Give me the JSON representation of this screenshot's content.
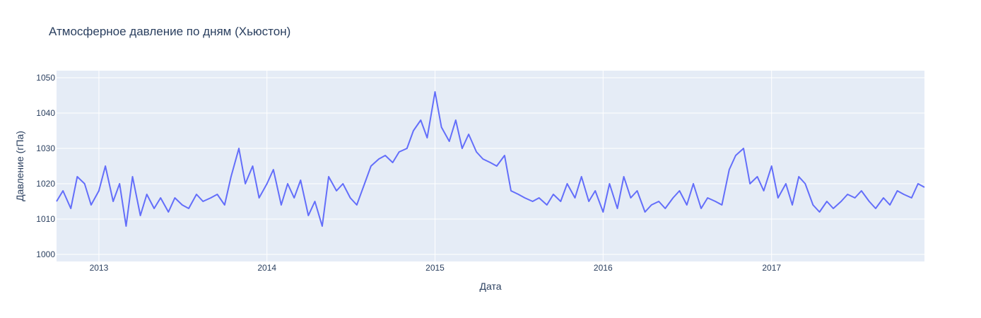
{
  "chart_data": {
    "type": "line",
    "title": "Атмосферное давление по дням (Хьюстон)",
    "xlabel": "Дата",
    "ylabel": "Давление (гПа)",
    "x_range": [
      "2012-10-01",
      "2017-11-29"
    ],
    "ylim": [
      998,
      1052
    ],
    "x_ticks": [
      {
        "date": "2013-01-01",
        "label": "2013"
      },
      {
        "date": "2014-01-01",
        "label": "2014"
      },
      {
        "date": "2015-01-01",
        "label": "2015"
      },
      {
        "date": "2016-01-01",
        "label": "2016"
      },
      {
        "date": "2017-01-01",
        "label": "2017"
      }
    ],
    "y_ticks": [
      1000,
      1010,
      1020,
      1030,
      1040,
      1050
    ],
    "grid": true,
    "colors": {
      "line": "#636efa",
      "plot_bg": "#e5ecf6",
      "grid": "#ffffff",
      "text": "#2a3f5f"
    },
    "series": [
      {
        "x": [
          "2012-10-01",
          "2012-10-15",
          "2012-11-01",
          "2012-11-15",
          "2012-12-01",
          "2012-12-15",
          "2013-01-01",
          "2013-01-15",
          "2013-02-01",
          "2013-02-15",
          "2013-03-01",
          "2013-03-15",
          "2013-04-01",
          "2013-04-15",
          "2013-05-01",
          "2013-05-15",
          "2013-06-01",
          "2013-06-15",
          "2013-07-01",
          "2013-07-15",
          "2013-08-01",
          "2013-08-15",
          "2013-09-01",
          "2013-09-15",
          "2013-10-01",
          "2013-10-15",
          "2013-11-01",
          "2013-11-15",
          "2013-12-01",
          "2013-12-15",
          "2014-01-01",
          "2014-01-15",
          "2014-02-01",
          "2014-02-15",
          "2014-03-01",
          "2014-03-15",
          "2014-04-01",
          "2014-04-15",
          "2014-05-01",
          "2014-05-15",
          "2014-06-01",
          "2014-06-15",
          "2014-07-01",
          "2014-07-15",
          "2014-08-01",
          "2014-08-15",
          "2014-09-01",
          "2014-09-15",
          "2014-10-01",
          "2014-10-15",
          "2014-11-01",
          "2014-11-15",
          "2014-12-01",
          "2014-12-15",
          "2015-01-01",
          "2015-01-15",
          "2015-02-01",
          "2015-02-15",
          "2015-03-01",
          "2015-03-15",
          "2015-04-01",
          "2015-04-15",
          "2015-05-01",
          "2015-05-15",
          "2015-06-01",
          "2015-06-15",
          "2015-07-01",
          "2015-07-15",
          "2015-08-01",
          "2015-08-15",
          "2015-09-01",
          "2015-09-15",
          "2015-10-01",
          "2015-10-15",
          "2015-11-01",
          "2015-11-15",
          "2015-12-01",
          "2015-12-15",
          "2016-01-01",
          "2016-01-15",
          "2016-02-01",
          "2016-02-15",
          "2016-03-01",
          "2016-03-15",
          "2016-04-01",
          "2016-04-15",
          "2016-05-01",
          "2016-05-15",
          "2016-06-01",
          "2016-06-15",
          "2016-07-01",
          "2016-07-15",
          "2016-08-01",
          "2016-08-15",
          "2016-09-01",
          "2016-09-15",
          "2016-10-01",
          "2016-10-15",
          "2016-11-01",
          "2016-11-15",
          "2016-12-01",
          "2016-12-15",
          "2017-01-01",
          "2017-01-15",
          "2017-02-01",
          "2017-02-15",
          "2017-03-01",
          "2017-03-15",
          "2017-04-01",
          "2017-04-15",
          "2017-05-01",
          "2017-05-15",
          "2017-06-01",
          "2017-06-15",
          "2017-07-01",
          "2017-07-15",
          "2017-08-01",
          "2017-08-15",
          "2017-09-01",
          "2017-09-15",
          "2017-10-01",
          "2017-10-15",
          "2017-11-01",
          "2017-11-15",
          "2017-11-29"
        ],
        "y": [
          1015,
          1018,
          1013,
          1022,
          1020,
          1014,
          1018,
          1025,
          1015,
          1020,
          1008,
          1022,
          1011,
          1017,
          1013,
          1016,
          1012,
          1016,
          1014,
          1013,
          1017,
          1015,
          1016,
          1017,
          1014,
          1022,
          1030,
          1020,
          1025,
          1016,
          1020,
          1024,
          1014,
          1020,
          1016,
          1021,
          1011,
          1015,
          1008,
          1022,
          1018,
          1020,
          1016,
          1014,
          1020,
          1025,
          1027,
          1028,
          1026,
          1029,
          1030,
          1035,
          1038,
          1033,
          1046,
          1036,
          1032,
          1038,
          1030,
          1034,
          1029,
          1027,
          1026,
          1025,
          1028,
          1018,
          1017,
          1016,
          1015,
          1016,
          1014,
          1017,
          1015,
          1020,
          1016,
          1022,
          1015,
          1018,
          1012,
          1020,
          1013,
          1022,
          1016,
          1018,
          1012,
          1014,
          1015,
          1013,
          1016,
          1018,
          1014,
          1020,
          1013,
          1016,
          1015,
          1014,
          1024,
          1028,
          1030,
          1020,
          1022,
          1018,
          1025,
          1016,
          1020,
          1014,
          1022,
          1020,
          1014,
          1012,
          1015,
          1013,
          1015,
          1017,
          1016,
          1018,
          1015,
          1013,
          1016,
          1014,
          1018,
          1017,
          1016,
          1020,
          1019
        ]
      }
    ]
  }
}
